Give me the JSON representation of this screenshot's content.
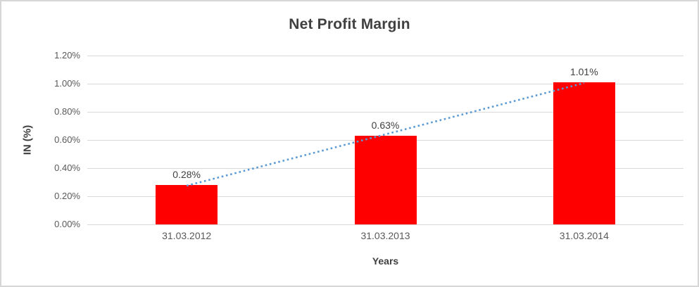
{
  "chart_data": {
    "type": "bar",
    "title": "Net Profit Margin",
    "xlabel": "Years",
    "ylabel": "IN (%)",
    "categories": [
      "31.03.2012",
      "31.03.2013",
      "31.03.2014"
    ],
    "values": [
      0.28,
      0.63,
      1.01
    ],
    "value_labels": [
      "0.28%",
      "0.63%",
      "1.01%"
    ],
    "yticks": [
      "0.00%",
      "0.20%",
      "0.40%",
      "0.60%",
      "0.80%",
      "1.00%",
      "1.20%"
    ],
    "ylim": [
      0,
      1.2
    ],
    "ytick_step": 0.2,
    "grid": true,
    "legend": "none",
    "bar_color": "#ff0000",
    "gridline_color": "#d9d9d9",
    "text_color": "#595959",
    "title_color": "#404040",
    "trendline": {
      "type": "linear",
      "style": "dotted",
      "color": "#5b9bd5"
    }
  }
}
